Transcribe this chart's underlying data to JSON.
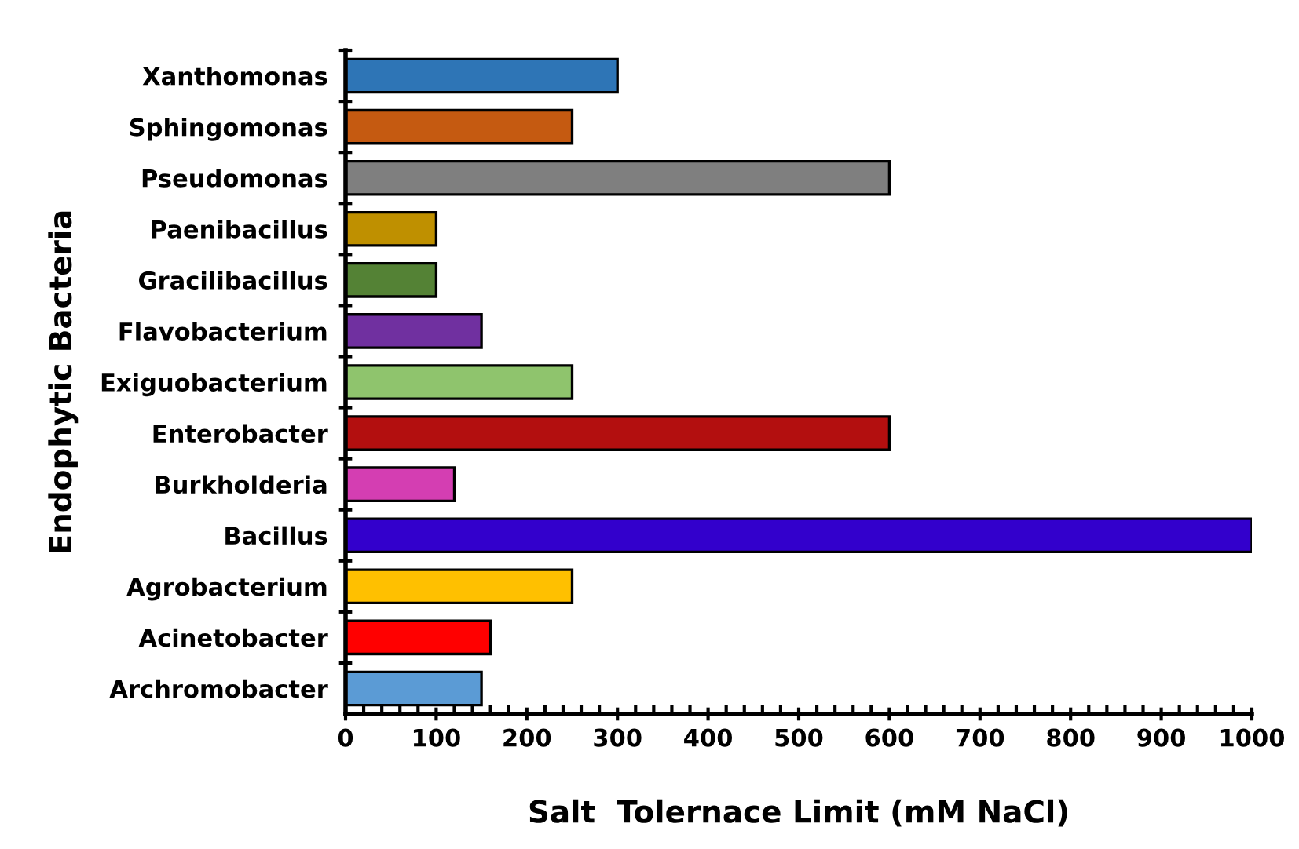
{
  "chart_data": {
    "type": "bar",
    "orientation": "horizontal",
    "xlabel": "Salt  Tolernace Limit (mM NaCl)",
    "ylabel": "Endophytic Bacteria",
    "categories": [
      "Xanthomonas",
      "Sphingomonas",
      "Pseudomonas",
      "Paenibacillus",
      "Gracilibacillus",
      "Flavobacterium",
      "Exiguobacterium",
      "Enterobacter",
      "Burkholderia",
      "Bacillus",
      "Agrobacterium",
      "Acinetobacter",
      "Archromobacter"
    ],
    "values": [
      300,
      250,
      600,
      100,
      100,
      150,
      250,
      600,
      120,
      1000,
      250,
      160,
      150
    ],
    "colors": [
      "#2e75b6",
      "#c55a11",
      "#7f7f7f",
      "#bf9000",
      "#548235",
      "#7030a0",
      "#8fc46d",
      "#b30f0f",
      "#d43eb2",
      "#3300cc",
      "#ffc000",
      "#ff0000",
      "#5b9bd5"
    ],
    "xlim": [
      0,
      1000
    ],
    "xticks": [
      0,
      100,
      200,
      300,
      400,
      500,
      600,
      700,
      800,
      900,
      1000
    ],
    "grid": false,
    "legend": false
  }
}
